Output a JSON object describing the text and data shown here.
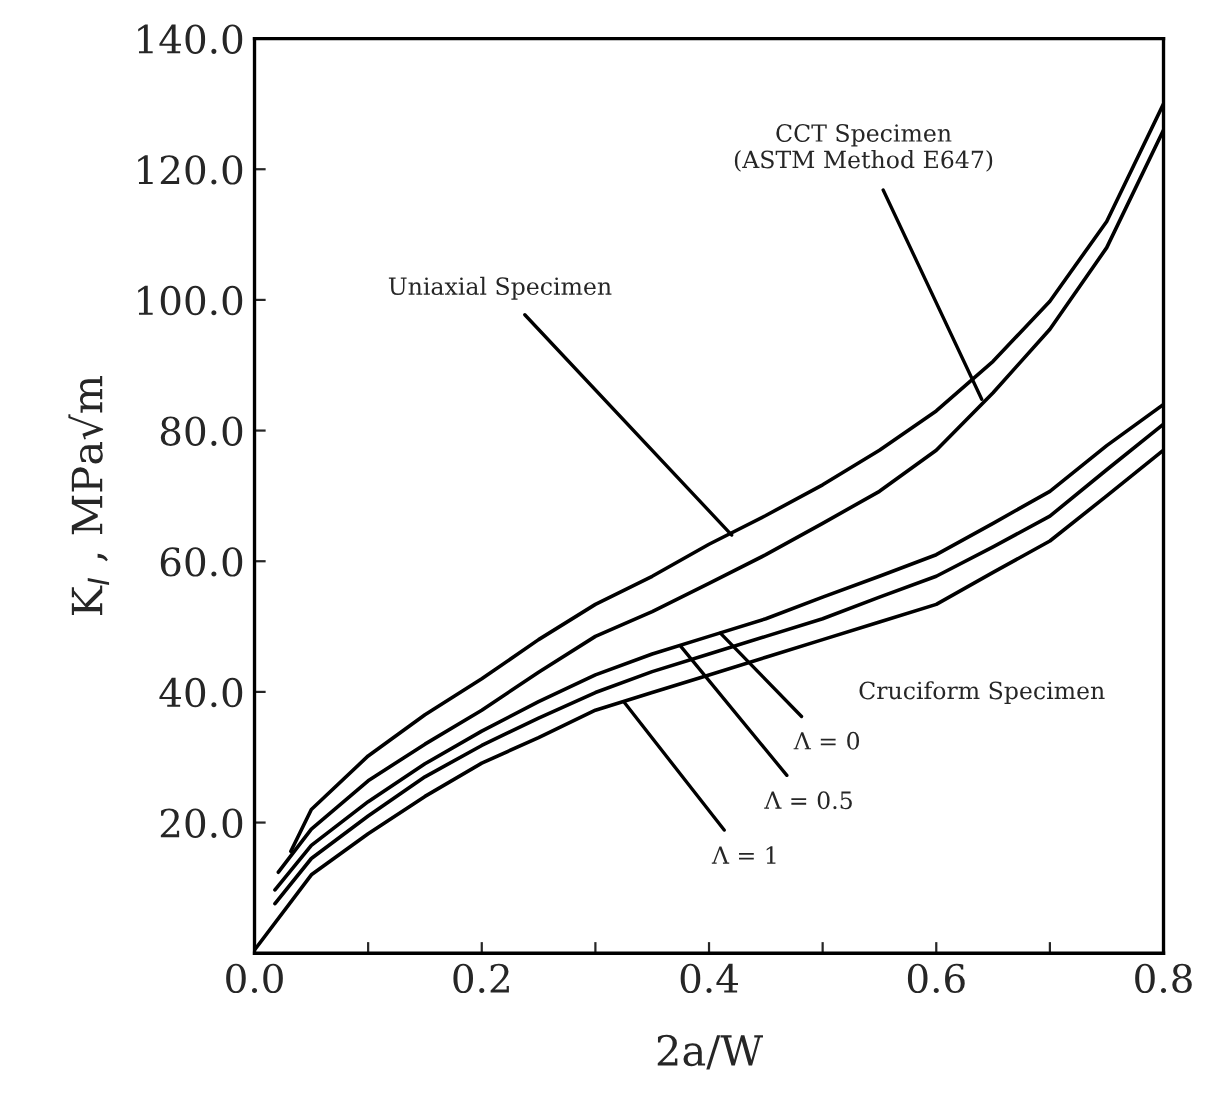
{
  "chart_data": {
    "type": "line",
    "xlabel": "2a/W",
    "ylabel": "K$_{I}$ , MPa√m",
    "xlim": [
      0,
      0.8
    ],
    "ylim": [
      0,
      140
    ],
    "xticks": [
      {
        "value": 0.0,
        "label": "0.0"
      },
      {
        "value": 0.1,
        "label": null
      },
      {
        "value": 0.2,
        "label": "0.2"
      },
      {
        "value": 0.3,
        "label": null
      },
      {
        "value": 0.4,
        "label": "0.4"
      },
      {
        "value": 0.5,
        "label": null
      },
      {
        "value": 0.6,
        "label": "0.6"
      },
      {
        "value": 0.7,
        "label": null
      },
      {
        "value": 0.8,
        "label": "0.8"
      }
    ],
    "yticks": [
      {
        "value": 20,
        "label": "20.0"
      },
      {
        "value": 40,
        "label": "40.0"
      },
      {
        "value": 60,
        "label": "60.0"
      },
      {
        "value": 80,
        "label": "80.0"
      },
      {
        "value": 100,
        "label": "100.0"
      },
      {
        "value": 120,
        "label": "120.0"
      },
      {
        "value": 140,
        "label": "140.0"
      }
    ],
    "grid": false,
    "legend": false,
    "marker": "none",
    "line_style": "solid",
    "series": [
      {
        "color": "#000000",
        "x": [
          0.032,
          0.05,
          0.1,
          0.15,
          0.2,
          0.25,
          0.3,
          0.35,
          0.4,
          0.45,
          0.5,
          0.55,
          0.6,
          0.65,
          0.7,
          0.75,
          0.8
        ],
        "values": [
          15.6,
          22,
          30.2,
          36.5,
          42,
          48,
          53.4,
          57.7,
          62.6,
          67,
          71.7,
          77,
          83,
          90.6,
          99.8,
          112,
          130
        ]
      },
      {
        "color": "#000000",
        "x": [
          0.021,
          0.05,
          0.1,
          0.15,
          0.2,
          0.25,
          0.3,
          0.35,
          0.4,
          0.45,
          0.5,
          0.55,
          0.6,
          0.65,
          0.7,
          0.75,
          0.8
        ],
        "values": [
          12.4,
          19,
          26.4,
          32,
          37.2,
          43,
          48.5,
          52.3,
          56.6,
          61,
          65.8,
          70.7,
          77,
          85.8,
          95.5,
          108,
          126
        ]
      },
      {
        "color": "#000000",
        "x": [
          0.018,
          0.05,
          0.1,
          0.15,
          0.2,
          0.25,
          0.3,
          0.35,
          0.4,
          0.45,
          0.5,
          0.55,
          0.6,
          0.65,
          0.7,
          0.75,
          0.8
        ],
        "values": [
          9.7,
          16.5,
          23.2,
          29,
          34,
          38.5,
          42.6,
          45.8,
          48.5,
          51.2,
          54.5,
          57.7,
          61,
          65.8,
          70.7,
          77.7,
          84
        ]
      },
      {
        "color": "#000000",
        "x": [
          0.018,
          0.05,
          0.1,
          0.15,
          0.2,
          0.25,
          0.3,
          0.35,
          0.4,
          0.45,
          0.5,
          0.55,
          0.6,
          0.65,
          0.7,
          0.75,
          0.8
        ],
        "values": [
          7.6,
          14.5,
          21,
          27,
          31.8,
          36,
          39.9,
          43.1,
          45.8,
          48.5,
          51.2,
          54.5,
          57.7,
          62.2,
          66.9,
          74,
          81
        ]
      },
      {
        "color": "#000000",
        "x": [
          0.0,
          0.05,
          0.1,
          0.15,
          0.2,
          0.25,
          0.3,
          0.35,
          0.4,
          0.45,
          0.5,
          0.55,
          0.6,
          0.65,
          0.7,
          0.75,
          0.8
        ],
        "values": [
          0.5,
          12,
          18.3,
          24,
          29.1,
          33,
          37.2,
          39.9,
          42.6,
          45.3,
          48,
          50.7,
          53.4,
          58.3,
          63.1,
          70,
          77
        ]
      }
    ],
    "annotations": [
      {
        "text": "Uniaxial Specimen",
        "x": 0.42,
        "y": 64
      },
      {
        "text": "CCT Specimen\n(ASTM Method E647)",
        "x": 0.64,
        "y": 84.8
      },
      "Cruciform Specimen",
      {
        "text": "Λ = 0",
        "x": 0.41,
        "y": 49
      },
      {
        "text": "Λ = 0.5",
        "x": 0.375,
        "y": 47
      },
      {
        "text": "Λ = 1",
        "x": 0.325,
        "y": 38.5
      }
    ]
  }
}
